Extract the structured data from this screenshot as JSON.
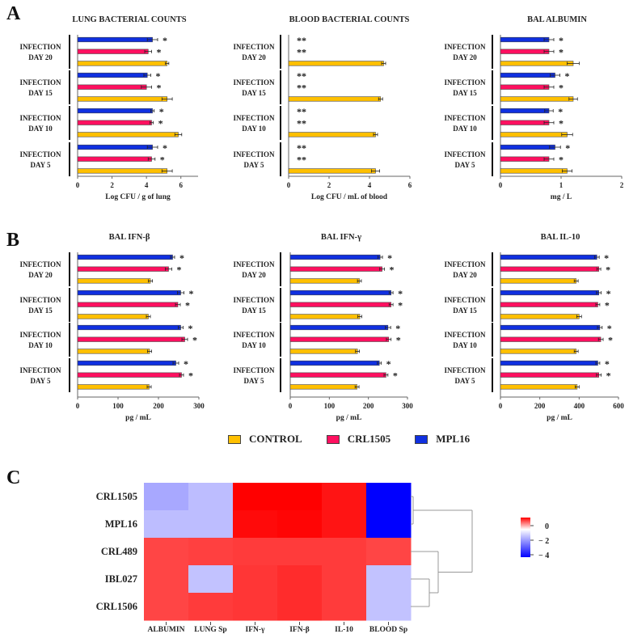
{
  "panels": {
    "a": "A",
    "b": "B",
    "c": "C"
  },
  "legend": [
    {
      "label": "CONTROL",
      "color": "#FFC000"
    },
    {
      "label": "CRL1505",
      "color": "#FF1060"
    },
    {
      "label": "MPL16",
      "color": "#1030E0"
    }
  ],
  "chart_data": [
    {
      "type": "bar",
      "orientation": "horizontal",
      "title": "LUNG BACTERIAL COUNTS",
      "xlabel": "Log CFU / g of lung",
      "ylabel": "",
      "xlim": [
        0,
        7
      ],
      "xticks": [
        0,
        2,
        4,
        6
      ],
      "groups": [
        "INFECTION DAY 20",
        "INFECTION DAY 15",
        "INFECTION DAY 10",
        "INFECTION DAY 5"
      ],
      "series": [
        {
          "name": "MPL16",
          "values": [
            4.35,
            4.05,
            4.35,
            4.35
          ],
          "errors": [
            0.3,
            0.2,
            0.1,
            0.3
          ],
          "sig": [
            "*",
            "*",
            "*",
            "*"
          ]
        },
        {
          "name": "CRL1505",
          "values": [
            4.1,
            4.0,
            4.3,
            4.3
          ],
          "errors": [
            0.2,
            0.3,
            0.1,
            0.2
          ],
          "sig": [
            "*",
            "*",
            "*",
            "*"
          ]
        },
        {
          "name": "CONTROL",
          "values": [
            5.2,
            5.2,
            5.85,
            5.2
          ],
          "errors": [
            0.1,
            0.3,
            0.2,
            0.3
          ],
          "sig": [
            "",
            "",
            "",
            ""
          ]
        }
      ]
    },
    {
      "type": "bar",
      "orientation": "horizontal",
      "title": "BLOOD BACTERIAL COUNTS",
      "xlabel": "Log CFU / mL of blood",
      "ylabel": "",
      "xlim": [
        0,
        6
      ],
      "xticks": [
        0,
        2,
        4,
        6
      ],
      "groups": [
        "INFECTION DAY 20",
        "INFECTION DAY 15",
        "INFECTION DAY 10",
        "INFECTION DAY 5"
      ],
      "series": [
        {
          "name": "MPL16",
          "values": [
            0,
            0,
            0,
            0
          ],
          "errors": [
            0,
            0,
            0,
            0
          ],
          "sig": [
            "**",
            "**",
            "**",
            "**"
          ]
        },
        {
          "name": "CRL1505",
          "values": [
            0,
            0,
            0,
            0
          ],
          "errors": [
            0,
            0,
            0,
            0
          ],
          "sig": [
            "**",
            "**",
            "**",
            "**"
          ]
        },
        {
          "name": "CONTROL",
          "values": [
            4.7,
            4.55,
            4.3,
            4.3
          ],
          "errors": [
            0.1,
            0.1,
            0.1,
            0.2
          ],
          "sig": [
            "",
            "",
            "",
            ""
          ]
        }
      ]
    },
    {
      "type": "bar",
      "orientation": "horizontal",
      "title": "BAL ALBUMIN",
      "xlabel": "mg / L",
      "ylabel": "",
      "xlim": [
        0,
        2
      ],
      "xticks": [
        0,
        1,
        2
      ],
      "groups": [
        "INFECTION DAY 20",
        "INFECTION DAY 15",
        "INFECTION DAY 10",
        "INFECTION DAY 5"
      ],
      "series": [
        {
          "name": "MPL16",
          "values": [
            0.8,
            0.9,
            0.8,
            0.9
          ],
          "errors": [
            0.08,
            0.08,
            0.07,
            0.09
          ],
          "sig": [
            "*",
            "*",
            "*",
            "*"
          ]
        },
        {
          "name": "CRL1505",
          "values": [
            0.8,
            0.8,
            0.8,
            0.8
          ],
          "errors": [
            0.08,
            0.08,
            0.08,
            0.08
          ],
          "sig": [
            "*",
            "*",
            "*",
            "*"
          ]
        },
        {
          "name": "CONTROL",
          "values": [
            1.2,
            1.2,
            1.1,
            1.1
          ],
          "errors": [
            0.1,
            0.07,
            0.09,
            0.08
          ],
          "sig": [
            "",
            "",
            "",
            ""
          ]
        }
      ]
    },
    {
      "type": "bar",
      "orientation": "horizontal",
      "title": "BAL IFN-β",
      "xlabel": "pg / mL",
      "ylabel": "",
      "xlim": [
        0,
        300
      ],
      "xticks": [
        0,
        100,
        200,
        300
      ],
      "groups": [
        "INFECTION DAY 20",
        "INFECTION DAY 15",
        "INFECTION DAY 10",
        "INFECTION DAY 5"
      ],
      "series": [
        {
          "name": "MPL16",
          "values": [
            235,
            255,
            255,
            243
          ],
          "errors": [
            5,
            8,
            6,
            7
          ],
          "sig": [
            "*",
            "*",
            "*",
            "*"
          ]
        },
        {
          "name": "CRL1505",
          "values": [
            225,
            248,
            265,
            257
          ],
          "errors": [
            8,
            6,
            7,
            5
          ],
          "sig": [
            "*",
            "*",
            "*",
            "*"
          ]
        },
        {
          "name": "CONTROL",
          "values": [
            180,
            175,
            178,
            177
          ],
          "errors": [
            5,
            5,
            5,
            5
          ],
          "sig": [
            "",
            "",
            "",
            ""
          ]
        }
      ]
    },
    {
      "type": "bar",
      "orientation": "horizontal",
      "title": "BAL IFN-γ",
      "xlabel": "pg / mL",
      "ylabel": "",
      "xlim": [
        0,
        300
      ],
      "xticks": [
        0,
        100,
        200,
        300
      ],
      "groups": [
        "INFECTION DAY 20",
        "INFECTION DAY 15",
        "INFECTION DAY 10",
        "INFECTION DAY 5"
      ],
      "series": [
        {
          "name": "MPL16",
          "values": [
            230,
            258,
            250,
            228
          ],
          "errors": [
            6,
            5,
            7,
            5
          ],
          "sig": [
            "*",
            "*",
            "*",
            "*"
          ]
        },
        {
          "name": "CRL1505",
          "values": [
            235,
            258,
            252,
            245
          ],
          "errors": [
            6,
            5,
            6,
            5
          ],
          "sig": [
            "*",
            "*",
            "*",
            "*"
          ]
        },
        {
          "name": "CONTROL",
          "values": [
            177,
            178,
            172,
            171
          ],
          "errors": [
            5,
            5,
            5,
            5
          ],
          "sig": [
            "",
            "",
            "",
            ""
          ]
        }
      ]
    },
    {
      "type": "bar",
      "orientation": "horizontal",
      "title": "BAL IL-10",
      "xlabel": "pg / mL",
      "ylabel": "",
      "xlim": [
        0,
        600
      ],
      "xticks": [
        0,
        200,
        400,
        600
      ],
      "groups": [
        "INFECTION DAY 20",
        "INFECTION DAY 15",
        "INFECTION DAY 10",
        "INFECTION DAY 5"
      ],
      "series": [
        {
          "name": "MPL16",
          "values": [
            490,
            500,
            505,
            495
          ],
          "errors": [
            12,
            12,
            12,
            10
          ],
          "sig": [
            "*",
            "*",
            "*",
            "*"
          ]
        },
        {
          "name": "CRL1505",
          "values": [
            500,
            495,
            510,
            500
          ],
          "errors": [
            10,
            10,
            12,
            12
          ],
          "sig": [
            "*",
            "*",
            "*",
            "*"
          ]
        },
        {
          "name": "CONTROL",
          "values": [
            385,
            400,
            385,
            390
          ],
          "errors": [
            10,
            12,
            10,
            10
          ],
          "sig": [
            "",
            "",
            "",
            ""
          ]
        }
      ]
    },
    {
      "type": "heatmap",
      "rows": [
        "CRL1505",
        "MPL16",
        "CRL489",
        "IBL027",
        "CRL1506"
      ],
      "columns": [
        "ALBUMIN",
        "LUNG Sp",
        "IFN-γ",
        "IFN-β",
        "IL-10",
        "BLOOD Sp"
      ],
      "values": [
        [
          -2.85,
          -2.65,
          0.6,
          0.6,
          0.4,
          -4.5
        ],
        [
          -2.65,
          -2.65,
          0.5,
          0.55,
          0.4,
          -4.5
        ],
        [
          -0.1,
          -0.05,
          0.0,
          0.0,
          0.0,
          -0.1
        ],
        [
          -0.1,
          -2.6,
          0.05,
          0.15,
          0.0,
          -2.6
        ],
        [
          -0.1,
          0.0,
          0.05,
          0.15,
          0.0,
          -2.6
        ]
      ],
      "colorbar": {
        "ticks": [
          "0",
          "− 2",
          "− 4"
        ],
        "low_color": "#0000FF",
        "mid_color": "#FFFFFF",
        "high_color": "#FF0000"
      },
      "row_dendrogram": true
    }
  ]
}
